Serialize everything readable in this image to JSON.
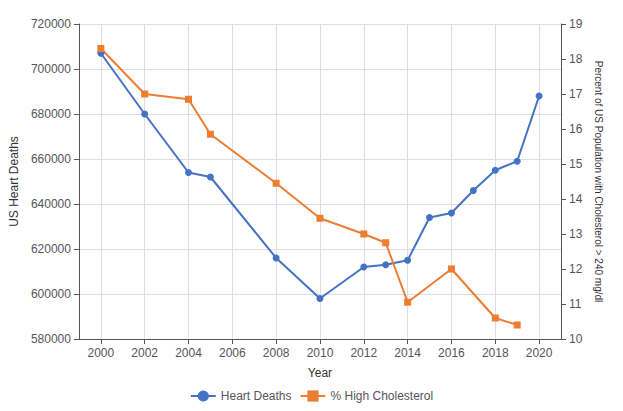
{
  "chart_data": {
    "type": "line",
    "xlabel": "Year",
    "ylabel": "US Heart Deaths",
    "y2label": "Percent of US Population with Cholesterol > 240 mg/dl",
    "xlim": [
      1999,
      2021
    ],
    "xticks": [
      2000,
      2002,
      2004,
      2006,
      2008,
      2010,
      2012,
      2014,
      2016,
      2018,
      2020
    ],
    "ylim": [
      580000,
      720000
    ],
    "yticks": [
      580000,
      600000,
      620000,
      640000,
      660000,
      680000,
      700000,
      720000
    ],
    "y2lim": [
      10,
      19
    ],
    "y2ticks": [
      10,
      11,
      12,
      13,
      14,
      15,
      16,
      17,
      18,
      19
    ],
    "grid": true,
    "legend": "bottom",
    "series": [
      {
        "name": "Heart Deaths",
        "color": "#4472c4",
        "marker": "circle",
        "x": [
          2000,
          2002,
          2004,
          2005,
          2008,
          2010,
          2012,
          2013,
          2014,
          2015,
          2016,
          2017,
          2018,
          2019,
          2020
        ],
        "values": [
          707000,
          680000,
          654000,
          652000,
          616000,
          598000,
          612000,
          613000,
          615000,
          634000,
          636000,
          646000,
          655000,
          659000,
          688000
        ]
      },
      {
        "name": "% High Cholesterol",
        "color": "#ed7d31",
        "marker": "square",
        "axis": "y2",
        "x": [
          2000,
          2002,
          2004,
          2005,
          2008,
          2010,
          2012,
          2013,
          2014,
          2016,
          2018,
          2019
        ],
        "values": [
          18.3,
          17.0,
          16.85,
          15.85,
          14.45,
          13.45,
          13.0,
          12.75,
          11.05,
          12.0,
          10.6,
          10.4
        ]
      }
    ]
  }
}
